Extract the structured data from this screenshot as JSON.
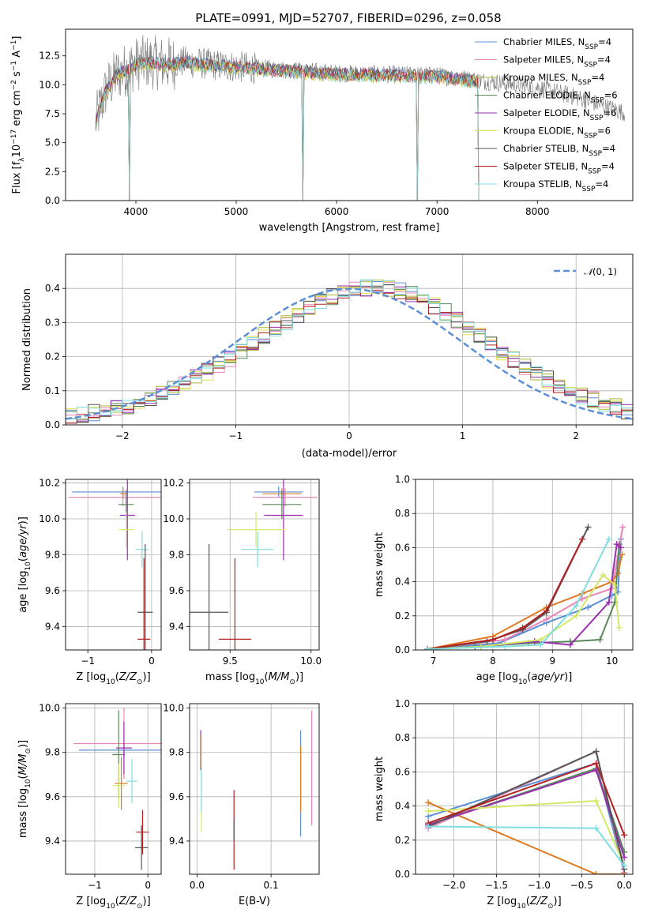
{
  "figure": {
    "title": "PLATE=0991, MJD=52707, FIBERID=0296, z=0.058"
  },
  "chart_data": [
    {
      "id": "spectrum",
      "type": "line",
      "title": "",
      "xlabel": "wavelength [Angstrom, rest frame]",
      "ylabel": "Flux [f",
      "ylabel_sub": "λ",
      "ylabel_rest": "10",
      "ylabel_exp": "−17",
      "ylabel_units": " erg cm",
      "ylabel_units_exp": "−2",
      "ylabel_units2": " s",
      "ylabel_units2_exp": "−1",
      "ylabel_units3": " A",
      "ylabel_units3_exp": "−1",
      "ylabel_end": "]",
      "xlim": [
        3300,
        8950
      ],
      "ylim": [
        0,
        14.8
      ],
      "xticks": [
        4000,
        5000,
        6000,
        7000,
        8000
      ],
      "yticks": [
        0.0,
        2.5,
        5.0,
        7.5,
        10.0,
        12.5
      ],
      "ytick_labels": [
        "0.0",
        "2.5",
        "5.0",
        "7.5",
        "10.0",
        "12.5"
      ],
      "grid": false,
      "legend_position": "top-right",
      "legend": [
        {
          "name": "Chabrier MILES, N",
          "sub": "SSP",
          "tail": "=4",
          "color": "#5b8fd6"
        },
        {
          "name": "Salpeter MILES, N",
          "sub": "SSP",
          "tail": "=4",
          "color": "#e886b8"
        },
        {
          "name": "Kroupa MILES, N",
          "sub": "SSP",
          "tail": "=4",
          "color": "#a8b830"
        },
        {
          "name": "Chabrier ELODIE, N",
          "sub": "SSP",
          "tail": "=6",
          "color": "#5a8a5a"
        },
        {
          "name": "Salpeter ELODIE, N",
          "sub": "SSP",
          "tail": "=6",
          "color": "#9a2fb0"
        },
        {
          "name": "Kroupa ELODIE, N",
          "sub": "SSP",
          "tail": "=6",
          "color": "#e0e048"
        },
        {
          "name": "Chabrier STELIB, N",
          "sub": "SSP",
          "tail": "=4",
          "color": "#555555"
        },
        {
          "name": "Salpeter STELIB, N",
          "sub": "SSP",
          "tail": "=4",
          "color": "#b22222"
        },
        {
          "name": "Kroupa STELIB, N",
          "sub": "SSP",
          "tail": "=4",
          "color": "#80dde0"
        }
      ],
      "data_continuum": {
        "x": [
          3600,
          3700,
          3800,
          3900,
          4000,
          4100,
          4300,
          4500,
          4800,
          5100,
          5500,
          6000,
          6500,
          7000,
          7300,
          7600,
          8000,
          8400,
          8900
        ],
        "y": [
          6.8,
          9.5,
          10.8,
          11.3,
          11.8,
          12.0,
          11.8,
          12.0,
          11.7,
          11.5,
          11.3,
          11.0,
          10.9,
          10.8,
          10.5,
          10.2,
          9.8,
          8.9,
          7.5
        ]
      },
      "data_spike_x": [
        3935,
        5660,
        6800,
        7420
      ]
    },
    {
      "id": "residuals",
      "type": "line",
      "title": "",
      "xlabel": "(data-model)/error",
      "ylabel": "Normed distribution",
      "xlim": [
        -2.5,
        2.5
      ],
      "ylim": [
        0,
        0.5
      ],
      "xticks": [
        -2,
        -1,
        0,
        1,
        2
      ],
      "xtick_labels": [
        "−2",
        "−1",
        "0",
        "1",
        "2"
      ],
      "yticks": [
        0.0,
        0.1,
        0.2,
        0.3,
        0.4
      ],
      "ytick_labels": [
        "0.0",
        "0.1",
        "0.2",
        "0.3",
        "0.4"
      ],
      "grid": true,
      "legend_position": "top-right",
      "legend": [
        {
          "name": "(0, 1)",
          "script": "𝒩",
          "color": "#5b8fd6"
        }
      ],
      "hist_bins": 50,
      "hist_values": [
        0.022,
        0.03,
        0.036,
        0.042,
        0.048,
        0.056,
        0.065,
        0.078,
        0.09,
        0.104,
        0.12,
        0.137,
        0.156,
        0.176,
        0.196,
        0.218,
        0.24,
        0.262,
        0.284,
        0.304,
        0.323,
        0.342,
        0.36,
        0.375,
        0.388,
        0.397,
        0.402,
        0.404,
        0.401,
        0.394,
        0.383,
        0.368,
        0.35,
        0.33,
        0.308,
        0.286,
        0.262,
        0.238,
        0.215,
        0.193,
        0.172,
        0.152,
        0.133,
        0.116,
        0.1,
        0.086,
        0.074,
        0.062,
        0.052,
        0.04
      ]
    },
    {
      "id": "age-vs-Z",
      "type": "scatter",
      "xlabel": "Z [log",
      "xlabel_sub": "10",
      "xlabel_rest": "(Z/Z",
      "xlabel_sun": "⊙",
      "xlabel_end": ")]",
      "ylabel": "age  [log",
      "ylabel_sub": "10",
      "ylabel_rest": "(age/yr)]",
      "xlim": [
        -1.35,
        0.15
      ],
      "ylim": [
        9.27,
        10.22
      ],
      "xticks": [
        -1,
        0
      ],
      "xtick_labels": [
        "−1",
        "0"
      ],
      "yticks": [
        9.4,
        9.6,
        9.8,
        10.0,
        10.2
      ],
      "ytick_labels": [
        "9.4",
        "9.6",
        "9.8",
        "10.0",
        "10.2"
      ],
      "grid": true,
      "points": [
        {
          "x": -0.45,
          "y": 10.15,
          "xerr": 0.8,
          "yerr": 0.03,
          "color": "#5b8fd6"
        },
        {
          "x": -0.45,
          "y": 10.12,
          "xerr": 0.85,
          "yerr": 0.05,
          "color": "#e886b8"
        },
        {
          "x": -0.45,
          "y": 10.14,
          "xerr": 0.05,
          "yerr": 0.03,
          "color": "#e07a20"
        },
        {
          "x": -0.4,
          "y": 10.08,
          "xerr": 0.12,
          "yerr": 0.08,
          "color": "#5a8a5a"
        },
        {
          "x": -0.38,
          "y": 10.02,
          "xerr": 0.12,
          "yerr": 0.25,
          "color": "#9a2fb0"
        },
        {
          "x": -0.4,
          "y": 9.94,
          "xerr": 0.12,
          "yerr": 0.1,
          "color": "#d4e868"
        },
        {
          "x": -0.15,
          "y": 9.83,
          "xerr": 0.1,
          "yerr": 0.1,
          "color": "#80dde0"
        },
        {
          "x": -0.1,
          "y": 9.48,
          "xerr": 0.12,
          "yerr": 0.38,
          "color": "#555555"
        },
        {
          "x": -0.12,
          "y": 9.33,
          "xerr": 0.1,
          "yerr": 0.45,
          "color": "#b22222"
        }
      ]
    },
    {
      "id": "age-vs-mass",
      "type": "scatter",
      "xlabel": "mass [log",
      "xlabel_sub": "10",
      "xlabel_rest": "(M/M",
      "xlabel_sun": "⊙",
      "xlabel_end": ")]",
      "xlim": [
        9.25,
        10.05
      ],
      "ylim": [
        9.27,
        10.22
      ],
      "xticks": [
        9.5,
        10.0
      ],
      "xtick_labels": [
        "9.5",
        "10.0"
      ],
      "yticks": [
        9.4,
        9.6,
        9.8,
        10.0,
        10.2
      ],
      "ytick_labels": [
        "9.4",
        "9.6",
        "9.8",
        "10.0",
        "10.2"
      ],
      "grid": true,
      "points": [
        {
          "x": 9.8,
          "y": 10.15,
          "xerr": 0.15,
          "yerr": 0.03,
          "color": "#5b8fd6"
        },
        {
          "x": 9.84,
          "y": 10.12,
          "xerr": 0.2,
          "yerr": 0.05,
          "color": "#e886b8"
        },
        {
          "x": 9.82,
          "y": 10.14,
          "xerr": 0.12,
          "yerr": 0.03,
          "color": "#e07a20"
        },
        {
          "x": 9.82,
          "y": 10.08,
          "xerr": 0.12,
          "yerr": 0.08,
          "color": "#5a8a5a"
        },
        {
          "x": 9.83,
          "y": 10.02,
          "xerr": 0.12,
          "yerr": 0.25,
          "color": "#9a2fb0"
        },
        {
          "x": 9.66,
          "y": 9.94,
          "xerr": 0.18,
          "yerr": 0.1,
          "color": "#d4e868"
        },
        {
          "x": 9.67,
          "y": 9.83,
          "xerr": 0.1,
          "yerr": 0.1,
          "color": "#80dde0"
        },
        {
          "x": 9.37,
          "y": 9.48,
          "xerr": 0.12,
          "yerr": 0.38,
          "color": "#555555"
        },
        {
          "x": 9.53,
          "y": 9.33,
          "xerr": 0.1,
          "yerr": 0.45,
          "color": "#b22222"
        }
      ]
    },
    {
      "id": "mass-weight-vs-age",
      "type": "line",
      "xlabel": "age  [log",
      "xlabel_sub": "10",
      "xlabel_rest": "(age/yr)]",
      "ylabel": "mass weight",
      "xlim": [
        6.7,
        10.35
      ],
      "ylim": [
        0,
        1
      ],
      "xticks": [
        7,
        8,
        9,
        10
      ],
      "xtick_labels": [
        "7",
        "8",
        "9",
        "10"
      ],
      "yticks": [
        0.0,
        0.2,
        0.4,
        0.6,
        0.8,
        1.0
      ],
      "ytick_labels": [
        "0.0",
        "0.2",
        "0.4",
        "0.6",
        "0.8",
        "1.0"
      ],
      "grid": true,
      "series": [
        {
          "color": "#5b8fd6",
          "x": [
            6.9,
            8.1,
            8.9,
            9.6,
            10.0,
            10.1,
            10.15
          ],
          "y": [
            0.005,
            0.04,
            0.16,
            0.25,
            0.32,
            0.34,
            0.65
          ]
        },
        {
          "color": "#e886b8",
          "x": [
            6.9,
            8.2,
            8.9,
            9.5,
            10.0,
            10.1,
            10.18
          ],
          "y": [
            0.005,
            0.06,
            0.18,
            0.3,
            0.36,
            0.55,
            0.72
          ]
        },
        {
          "color": "#e07a20",
          "x": [
            6.9,
            8.0,
            8.9,
            9.5,
            10.0,
            10.1,
            10.17
          ],
          "y": [
            0.005,
            0.08,
            0.25,
            0.33,
            0.4,
            0.45,
            0.56
          ]
        },
        {
          "color": "#5a8a5a",
          "x": [
            6.9,
            7.7,
            8.6,
            9.3,
            9.8,
            10.05,
            10.12
          ],
          "y": [
            0.005,
            0.02,
            0.04,
            0.05,
            0.06,
            0.28,
            0.62
          ]
        },
        {
          "color": "#9a2fb0",
          "x": [
            6.9,
            7.8,
            8.7,
            9.3,
            9.95,
            10.08,
            10.15
          ],
          "y": [
            0.005,
            0.02,
            0.05,
            0.03,
            0.28,
            0.62,
            0.6
          ]
        },
        {
          "color": "#d4e868",
          "x": [
            6.9,
            7.8,
            8.8,
            9.4,
            9.85,
            10.05,
            10.12
          ],
          "y": [
            0.005,
            0.02,
            0.06,
            0.2,
            0.44,
            0.38,
            0.13
          ]
        },
        {
          "color": "#555555",
          "x": [
            6.9,
            7.9,
            8.5,
            8.9,
            9.6
          ],
          "y": [
            0.005,
            0.05,
            0.12,
            0.22,
            0.72
          ]
        },
        {
          "color": "#b22222",
          "x": [
            6.9,
            8.0,
            8.5,
            8.9,
            9.5
          ],
          "y": [
            0.005,
            0.06,
            0.13,
            0.23,
            0.65
          ]
        },
        {
          "color": "#80dde0",
          "x": [
            6.9,
            8.2,
            8.8,
            9.4,
            9.95
          ],
          "y": [
            0.005,
            0.02,
            0.03,
            0.26,
            0.65
          ]
        }
      ]
    },
    {
      "id": "mass-vs-Z",
      "type": "scatter",
      "xlabel": "Z [log",
      "xlabel_sub": "10",
      "xlabel_rest": "(Z/Z",
      "xlabel_sun": "⊙",
      "xlabel_end": ")]",
      "ylabel": "mass [log",
      "ylabel_sub": "10",
      "ylabel_rest": "(M/M",
      "ylabel_sun": "⊙",
      "ylabel_end": ")]",
      "xlim": [
        -1.55,
        0.25
      ],
      "ylim": [
        9.25,
        10.02
      ],
      "xticks": [
        -1,
        0
      ],
      "xtick_labels": [
        "−1",
        "0"
      ],
      "yticks": [
        9.4,
        9.6,
        9.8,
        10.0
      ],
      "ytick_labels": [
        "9.4",
        "9.6",
        "9.8",
        "10.0"
      ],
      "grid": true,
      "points": [
        {
          "x": -0.45,
          "y": 9.81,
          "xerr": 0.85,
          "yerr": 0.03,
          "color": "#5b8fd6"
        },
        {
          "x": -0.45,
          "y": 9.84,
          "xerr": 0.95,
          "yerr": 0.16,
          "color": "#e886b8"
        },
        {
          "x": -0.5,
          "y": 9.66,
          "xerr": 0.12,
          "yerr": 0.12,
          "color": "#e07a20"
        },
        {
          "x": -0.55,
          "y": 9.79,
          "xerr": 0.12,
          "yerr": 0.2,
          "color": "#5a8a5a"
        },
        {
          "x": -0.45,
          "y": 9.82,
          "xerr": 0.15,
          "yerr": 0.12,
          "color": "#9a2fb0"
        },
        {
          "x": -0.55,
          "y": 9.65,
          "xerr": 0.12,
          "yerr": 0.1,
          "color": "#d4e868"
        },
        {
          "x": -0.3,
          "y": 9.67,
          "xerr": 0.1,
          "yerr": 0.1,
          "color": "#80dde0"
        },
        {
          "x": -0.12,
          "y": 9.37,
          "xerr": 0.12,
          "yerr": 0.1,
          "color": "#555555"
        },
        {
          "x": -0.1,
          "y": 9.44,
          "xerr": 0.12,
          "yerr": 0.1,
          "color": "#b22222"
        }
      ]
    },
    {
      "id": "mass-vs-EBV",
      "type": "scatter",
      "xlabel": "E(B-V)",
      "xlim": [
        -0.01,
        0.165
      ],
      "ylim": [
        9.25,
        10.02
      ],
      "xticks": [
        0.0,
        0.1
      ],
      "xtick_labels": [
        "0.0",
        "0.1"
      ],
      "yticks": [
        9.4,
        9.6,
        9.8,
        10.0
      ],
      "ytick_labels": [
        "9.4",
        "9.6",
        "9.8",
        "10.0"
      ],
      "grid": true,
      "points": [
        {
          "x": 0.005,
          "y": 9.81,
          "xerr": 0,
          "yerr": 0.09,
          "color": "#9a2fb0"
        },
        {
          "x": 0.006,
          "y": 9.66,
          "xerr": 0,
          "yerr": 0.22,
          "color": "#d4e868"
        },
        {
          "x": 0.006,
          "y": 9.63,
          "xerr": 0,
          "yerr": 0.1,
          "color": "#80dde0"
        },
        {
          "x": 0.05,
          "y": 9.45,
          "xerr": 0,
          "yerr": 0.18,
          "color": "#b22222"
        },
        {
          "x": 0.05,
          "y": 9.45,
          "xerr": 0,
          "yerr": 0.05,
          "color": "#555555"
        },
        {
          "x": 0.14,
          "y": 9.66,
          "xerr": 0,
          "yerr": 0.24,
          "color": "#5b8fd6"
        },
        {
          "x": 0.14,
          "y": 9.68,
          "xerr": 0,
          "yerr": 0.15,
          "color": "#e07a20"
        },
        {
          "x": 0.155,
          "y": 9.73,
          "xerr": 0,
          "yerr": 0.26,
          "color": "#e886b8"
        }
      ]
    },
    {
      "id": "mass-weight-vs-Z",
      "type": "line",
      "xlabel": "Z [log",
      "xlabel_sub": "10",
      "xlabel_rest": "(Z/Z",
      "xlabel_sun": "⊙",
      "xlabel_end": ")]",
      "ylabel": "mass weight",
      "xlim": [
        -2.45,
        0.1
      ],
      "ylim": [
        0,
        1
      ],
      "xticks": [
        -2.0,
        -1.5,
        -1.0,
        -0.5,
        0.0
      ],
      "xtick_labels": [
        "−2.0",
        "−1.5",
        "−1.0",
        "−0.5",
        "0.0"
      ],
      "yticks": [
        0.0,
        0.2,
        0.4,
        0.6,
        0.8,
        1.0
      ],
      "ytick_labels": [
        "0.0",
        "0.2",
        "0.4",
        "0.6",
        "0.8",
        "1.0"
      ],
      "grid": true,
      "series": [
        {
          "color": "#5b8fd6",
          "x": [
            -2.3,
            -0.33,
            0.0
          ],
          "y": [
            0.34,
            0.65,
            0.01
          ]
        },
        {
          "color": "#e886b8",
          "x": [
            -2.3,
            -0.33,
            0.0
          ],
          "y": [
            0.27,
            0.72,
            0.01
          ]
        },
        {
          "color": "#e07a20",
          "x": [
            -2.3,
            -0.33,
            0.0
          ],
          "y": [
            0.42,
            0.0,
            0.0
          ]
        },
        {
          "color": "#5a8a5a",
          "x": [
            -2.3,
            -0.33,
            0.0
          ],
          "y": [
            0.29,
            0.62,
            0.13
          ]
        },
        {
          "color": "#9a2fb0",
          "x": [
            -2.3,
            -0.33,
            0.0
          ],
          "y": [
            0.29,
            0.61,
            0.1
          ]
        },
        {
          "color": "#d4e868",
          "x": [
            -2.3,
            -0.33,
            0.0
          ],
          "y": [
            0.37,
            0.43,
            0.05
          ]
        },
        {
          "color": "#555555",
          "x": [
            -2.3,
            -0.33,
            0.0
          ],
          "y": [
            0.28,
            0.72,
            0.03
          ]
        },
        {
          "color": "#b22222",
          "x": [
            -2.3,
            -0.33,
            0.0
          ],
          "y": [
            0.3,
            0.65,
            0.23
          ]
        },
        {
          "color": "#80dde0",
          "x": [
            -2.3,
            -0.33,
            0.0
          ],
          "y": [
            0.28,
            0.27,
            0.05
          ]
        }
      ]
    }
  ]
}
